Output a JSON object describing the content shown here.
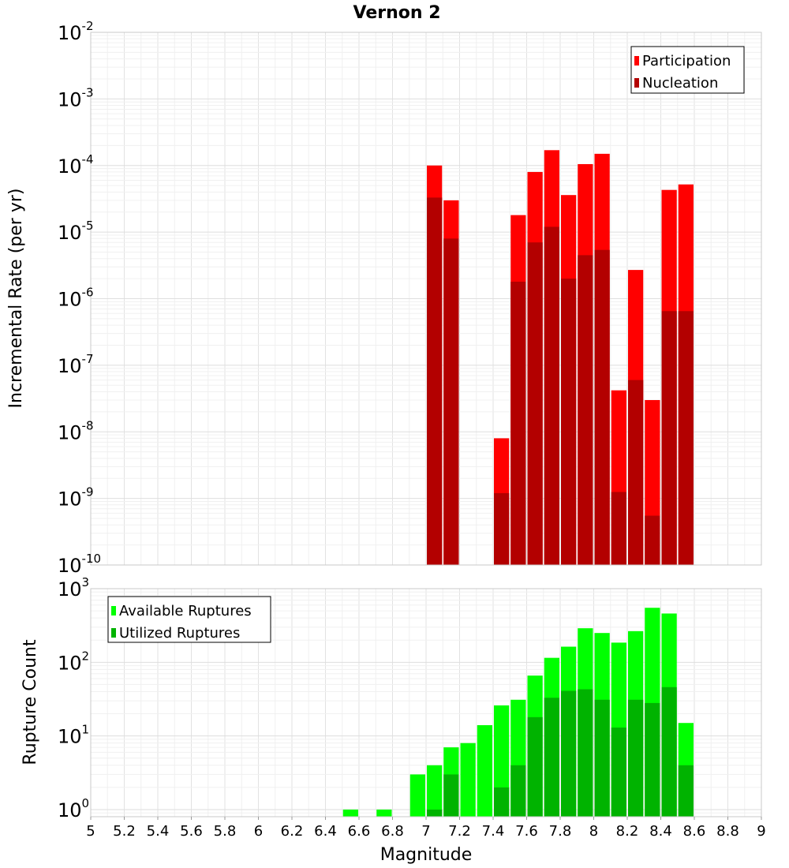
{
  "chart_data": [
    {
      "type": "bar",
      "title": "Vernon 2",
      "xlabel": "Magnitude",
      "ylabel": "Incremental Rate (per yr)",
      "yscale": "log",
      "ylim": [
        1e-10,
        0.01
      ],
      "xlim": [
        5,
        9
      ],
      "bin_width": 0.1,
      "y_ticks": [
        {
          "base": "10",
          "exp": "-10"
        },
        {
          "base": "10",
          "exp": "-9"
        },
        {
          "base": "10",
          "exp": "-8"
        },
        {
          "base": "10",
          "exp": "-7"
        },
        {
          "base": "10",
          "exp": "-6"
        },
        {
          "base": "10",
          "exp": "-5"
        },
        {
          "base": "10",
          "exp": "-4"
        },
        {
          "base": "10",
          "exp": "-3"
        },
        {
          "base": "10",
          "exp": "-2"
        }
      ],
      "legend": {
        "position": "top-right",
        "entries": [
          {
            "label": "Participation",
            "color": "#ff0000"
          },
          {
            "label": "Nucleation",
            "color": "#b30000"
          }
        ]
      },
      "series": [
        {
          "name": "Participation",
          "color": "#ff0000",
          "x": [
            7.05,
            7.15,
            7.45,
            7.55,
            7.65,
            7.75,
            7.85,
            7.95,
            8.05,
            8.15,
            8.25,
            8.35,
            8.45,
            8.55
          ],
          "values": [
            0.0001,
            3e-05,
            8e-09,
            1.8e-05,
            8e-05,
            0.00017,
            3.6e-05,
            0.000105,
            0.00015,
            4.2e-08,
            2.7e-06,
            3e-08,
            4.3e-05,
            5.2e-05
          ]
        },
        {
          "name": "Nucleation",
          "color": "#b30000",
          "x": [
            7.05,
            7.15,
            7.45,
            7.55,
            7.65,
            7.75,
            7.85,
            7.95,
            8.05,
            8.15,
            8.25,
            8.35,
            8.45,
            8.55
          ],
          "values": [
            3.3e-05,
            8e-06,
            1.2e-09,
            1.8e-06,
            7e-06,
            1.2e-05,
            2e-06,
            4.5e-06,
            5.4e-06,
            1.25e-09,
            6e-08,
            5.5e-10,
            6.5e-07,
            6.5e-07
          ]
        }
      ]
    },
    {
      "type": "bar",
      "title": "",
      "xlabel": "Magnitude",
      "ylabel": "Rupture Count",
      "yscale": "log",
      "ylim": [
        0.8,
        1000
      ],
      "xlim": [
        5,
        9
      ],
      "bin_width": 0.1,
      "x_ticks": [
        "5",
        "5.2",
        "5.4",
        "5.6",
        "5.8",
        "6",
        "6.2",
        "6.4",
        "6.6",
        "6.8",
        "7",
        "7.2",
        "7.4",
        "7.6",
        "7.8",
        "8",
        "8.2",
        "8.4",
        "8.6",
        "8.8",
        "9"
      ],
      "y_ticks": [
        {
          "base": "10",
          "exp": "0"
        },
        {
          "base": "10",
          "exp": "1"
        },
        {
          "base": "10",
          "exp": "2"
        },
        {
          "base": "10",
          "exp": "3"
        }
      ],
      "legend": {
        "position": "top-left",
        "entries": [
          {
            "label": "Available Ruptures",
            "color": "#00ff00"
          },
          {
            "label": "Utilized Ruptures",
            "color": "#00b300"
          }
        ]
      },
      "series": [
        {
          "name": "Available Ruptures",
          "color": "#00ff00",
          "x": [
            6.55,
            6.75,
            6.95,
            7.05,
            7.15,
            7.25,
            7.35,
            7.45,
            7.55,
            7.65,
            7.75,
            7.85,
            7.95,
            8.05,
            8.15,
            8.25,
            8.35,
            8.45,
            8.55
          ],
          "values": [
            1,
            1,
            3,
            4,
            7,
            8,
            14,
            26,
            31,
            66,
            115,
            163,
            290,
            250,
            185,
            265,
            550,
            460,
            15
          ]
        },
        {
          "name": "Utilized Ruptures",
          "color": "#00b300",
          "x": [
            7.05,
            7.15,
            7.45,
            7.55,
            7.65,
            7.75,
            7.85,
            7.95,
            8.05,
            8.15,
            8.25,
            8.35,
            8.45,
            8.55
          ],
          "values": [
            1,
            3,
            2,
            4,
            18,
            33,
            41,
            43,
            31,
            13,
            31,
            28,
            46,
            4
          ]
        }
      ]
    }
  ]
}
